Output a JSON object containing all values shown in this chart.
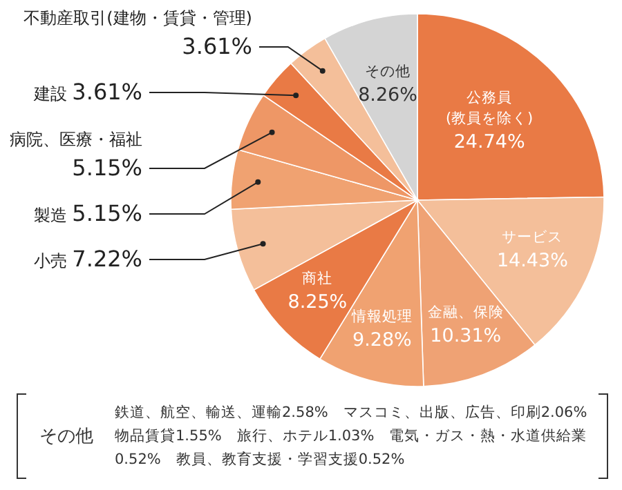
{
  "chart_data": {
    "type": "pie",
    "categories": [
      "公務員\n(教員を除く)",
      "サービス",
      "金融、保険",
      "情報処理",
      "商社",
      "小売",
      "製造",
      "病院、医療・福祉",
      "建設",
      "不動産取引(建物・賃貸・管理)",
      "その他"
    ],
    "values": [
      24.74,
      14.43,
      10.31,
      9.28,
      8.25,
      7.22,
      5.15,
      5.15,
      3.61,
      3.61,
      8.26
    ],
    "value_labels": [
      "24.74%",
      "14.43%",
      "10.31%",
      "9.28%",
      "8.25%",
      "7.22%",
      "5.15%",
      "5.15%",
      "3.61%",
      "3.61%",
      "8.26%"
    ],
    "colors": [
      "#e97a45",
      "#f4bf9a",
      "#efa274",
      "#f0a271",
      "#e97a45",
      "#f4bf9a",
      "#f0a271",
      "#ee9766",
      "#e97a45",
      "#f4bf9a",
      "#d4d4d4"
    ],
    "annotations": [
      "その他",
      "鉄道、航空、輸送、運輸2.58%　マスコミ、出版、広告、印刷2.06%　物品賃貸1.55%　旅行、ホテル1.03%　電気・ガス・熱・水道供給業0.52%　教員、教育支援・学習支援0.52%"
    ]
  }
}
